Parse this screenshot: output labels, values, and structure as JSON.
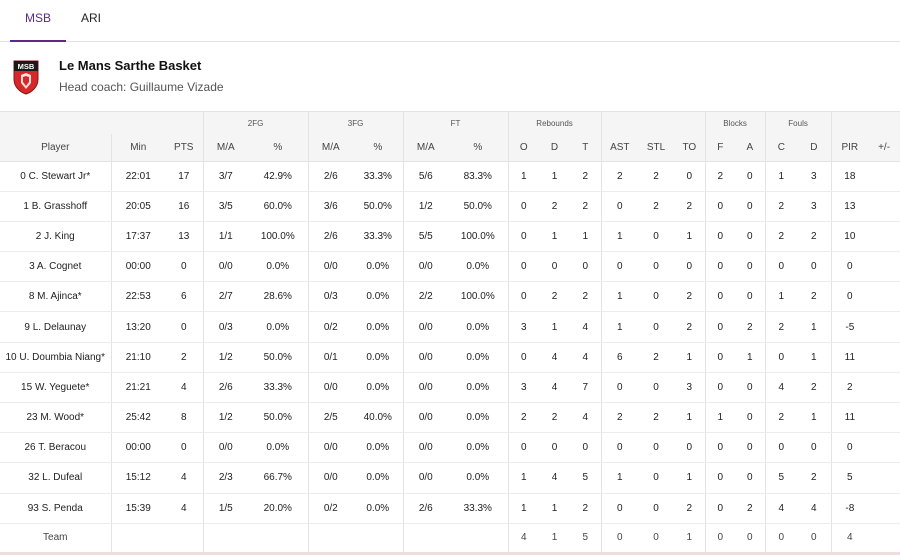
{
  "tabs": [
    {
      "label": "MSB",
      "active": true
    },
    {
      "label": "ARI",
      "active": false
    }
  ],
  "team": {
    "name": "Le Mans Sarthe Basket",
    "coach": "Head coach: Guillaume Vizade",
    "logo_text": "MSB",
    "logo_color": "#d62828"
  },
  "accent_color": "#5b2a86",
  "groups": {
    "fg2": "2FG",
    "fg3": "3FG",
    "ft": "FT",
    "rebounds": "Rebounds",
    "blocks": "Blocks",
    "fouls": "Fouls"
  },
  "headers": [
    "Player",
    "Min",
    "PTS",
    "M/A",
    "%",
    "M/A",
    "%",
    "M/A",
    "%",
    "O",
    "D",
    "T",
    "AST",
    "STL",
    "TO",
    "F",
    "A",
    "C",
    "D",
    "PIR",
    "+/-"
  ],
  "rows": [
    [
      "0 C. Stewart Jr*",
      "22:01",
      "17",
      "3/7",
      "42.9%",
      "2/6",
      "33.3%",
      "5/6",
      "83.3%",
      "1",
      "1",
      "2",
      "2",
      "2",
      "0",
      "2",
      "0",
      "1",
      "3",
      "18",
      ""
    ],
    [
      "1 B. Grasshoff",
      "20:05",
      "16",
      "3/5",
      "60.0%",
      "3/6",
      "50.0%",
      "1/2",
      "50.0%",
      "0",
      "2",
      "2",
      "0",
      "2",
      "2",
      "0",
      "0",
      "2",
      "3",
      "13",
      ""
    ],
    [
      "2 J. King",
      "17:37",
      "13",
      "1/1",
      "100.0%",
      "2/6",
      "33.3%",
      "5/5",
      "100.0%",
      "0",
      "1",
      "1",
      "1",
      "0",
      "1",
      "0",
      "0",
      "2",
      "2",
      "10",
      ""
    ],
    [
      "3 A. Cognet",
      "00:00",
      "0",
      "0/0",
      "0.0%",
      "0/0",
      "0.0%",
      "0/0",
      "0.0%",
      "0",
      "0",
      "0",
      "0",
      "0",
      "0",
      "0",
      "0",
      "0",
      "0",
      "0",
      ""
    ],
    [
      "8 M. Ajinca*",
      "22:53",
      "6",
      "2/7",
      "28.6%",
      "0/3",
      "0.0%",
      "2/2",
      "100.0%",
      "0",
      "2",
      "2",
      "1",
      "0",
      "2",
      "0",
      "0",
      "1",
      "2",
      "0",
      ""
    ],
    [
      "9 L. Delaunay",
      "13:20",
      "0",
      "0/3",
      "0.0%",
      "0/2",
      "0.0%",
      "0/0",
      "0.0%",
      "3",
      "1",
      "4",
      "1",
      "0",
      "2",
      "0",
      "2",
      "2",
      "1",
      "-5",
      ""
    ],
    [
      "10 U. Doumbia Niang*",
      "21:10",
      "2",
      "1/2",
      "50.0%",
      "0/1",
      "0.0%",
      "0/0",
      "0.0%",
      "0",
      "4",
      "4",
      "6",
      "2",
      "1",
      "0",
      "1",
      "0",
      "1",
      "11",
      ""
    ],
    [
      "15 W. Yeguete*",
      "21:21",
      "4",
      "2/6",
      "33.3%",
      "0/0",
      "0.0%",
      "0/0",
      "0.0%",
      "3",
      "4",
      "7",
      "0",
      "0",
      "3",
      "0",
      "0",
      "4",
      "2",
      "2",
      ""
    ],
    [
      "23 M. Wood*",
      "25:42",
      "8",
      "1/2",
      "50.0%",
      "2/5",
      "40.0%",
      "0/0",
      "0.0%",
      "2",
      "2",
      "4",
      "2",
      "2",
      "1",
      "1",
      "0",
      "2",
      "1",
      "11",
      ""
    ],
    [
      "26 T. Beracou",
      "00:00",
      "0",
      "0/0",
      "0.0%",
      "0/0",
      "0.0%",
      "0/0",
      "0.0%",
      "0",
      "0",
      "0",
      "0",
      "0",
      "0",
      "0",
      "0",
      "0",
      "0",
      "0",
      ""
    ],
    [
      "32 L. Dufeal",
      "15:12",
      "4",
      "2/3",
      "66.7%",
      "0/0",
      "0.0%",
      "0/0",
      "0.0%",
      "1",
      "4",
      "5",
      "1",
      "0",
      "1",
      "0",
      "0",
      "5",
      "2",
      "5",
      ""
    ],
    [
      "93 S. Penda",
      "15:39",
      "4",
      "1/5",
      "20.0%",
      "0/2",
      "0.0%",
      "2/6",
      "33.3%",
      "1",
      "1",
      "2",
      "0",
      "0",
      "2",
      "0",
      "2",
      "4",
      "4",
      "-8",
      ""
    ],
    [
      "Team",
      "",
      "",
      "",
      "",
      "",
      "",
      "",
      "",
      "4",
      "1",
      "5",
      "0",
      "0",
      "1",
      "0",
      "0",
      "0",
      "0",
      "4",
      ""
    ]
  ]
}
